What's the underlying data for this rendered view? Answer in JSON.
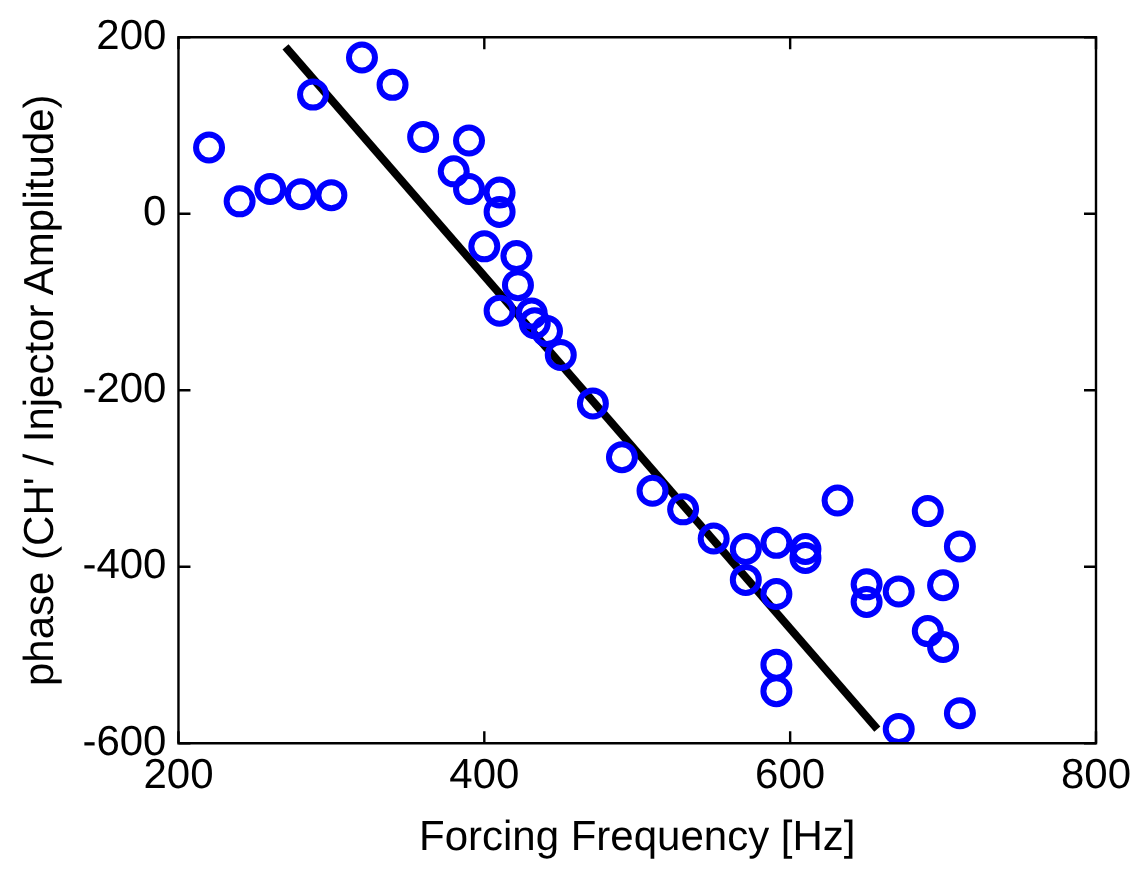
{
  "chart_data": {
    "type": "scatter",
    "xlabel": "Forcing Frequency [Hz]",
    "ylabel": "phase (CH' / Injector Amplitude)",
    "xlim": [
      200,
      800
    ],
    "ylim": [
      -600,
      200
    ],
    "xticks": [
      200,
      400,
      600,
      800
    ],
    "yticks": [
      -600,
      -400,
      -200,
      0,
      200
    ],
    "grid": false,
    "legend": false,
    "marker": "circle",
    "series": [
      {
        "color": "#0000ff",
        "x": [
          220,
          240,
          260,
          280,
          300,
          288,
          320,
          340,
          360,
          390,
          380,
          390,
          410,
          410,
          400,
          421,
          422,
          410,
          431,
          433,
          441,
          450,
          471,
          490,
          510,
          530,
          550,
          571,
          571,
          591,
          591,
          591,
          591,
          610,
          610,
          631,
          650,
          650,
          671,
          671,
          690,
          690,
          700,
          700,
          711,
          711
        ],
        "values": [
          75,
          14,
          28,
          22,
          21,
          135,
          177,
          146,
          87,
          83,
          48,
          28,
          24,
          2,
          -37,
          -48,
          -81,
          -110,
          -113,
          -124,
          -133,
          -160,
          -215,
          -276,
          -314,
          -335,
          -368,
          -380,
          -415,
          -373,
          -431,
          -511,
          -541,
          -380,
          -390,
          -325,
          -420,
          -440,
          -428,
          -584,
          -337,
          -473,
          -421,
          -491,
          -377,
          -566
        ]
      },
      {
        "type": "line",
        "color": "#000000",
        "marker": "none",
        "line_style": "solid",
        "x": [
          270,
          657
        ],
        "values": [
          189,
          -584
        ]
      }
    ]
  }
}
